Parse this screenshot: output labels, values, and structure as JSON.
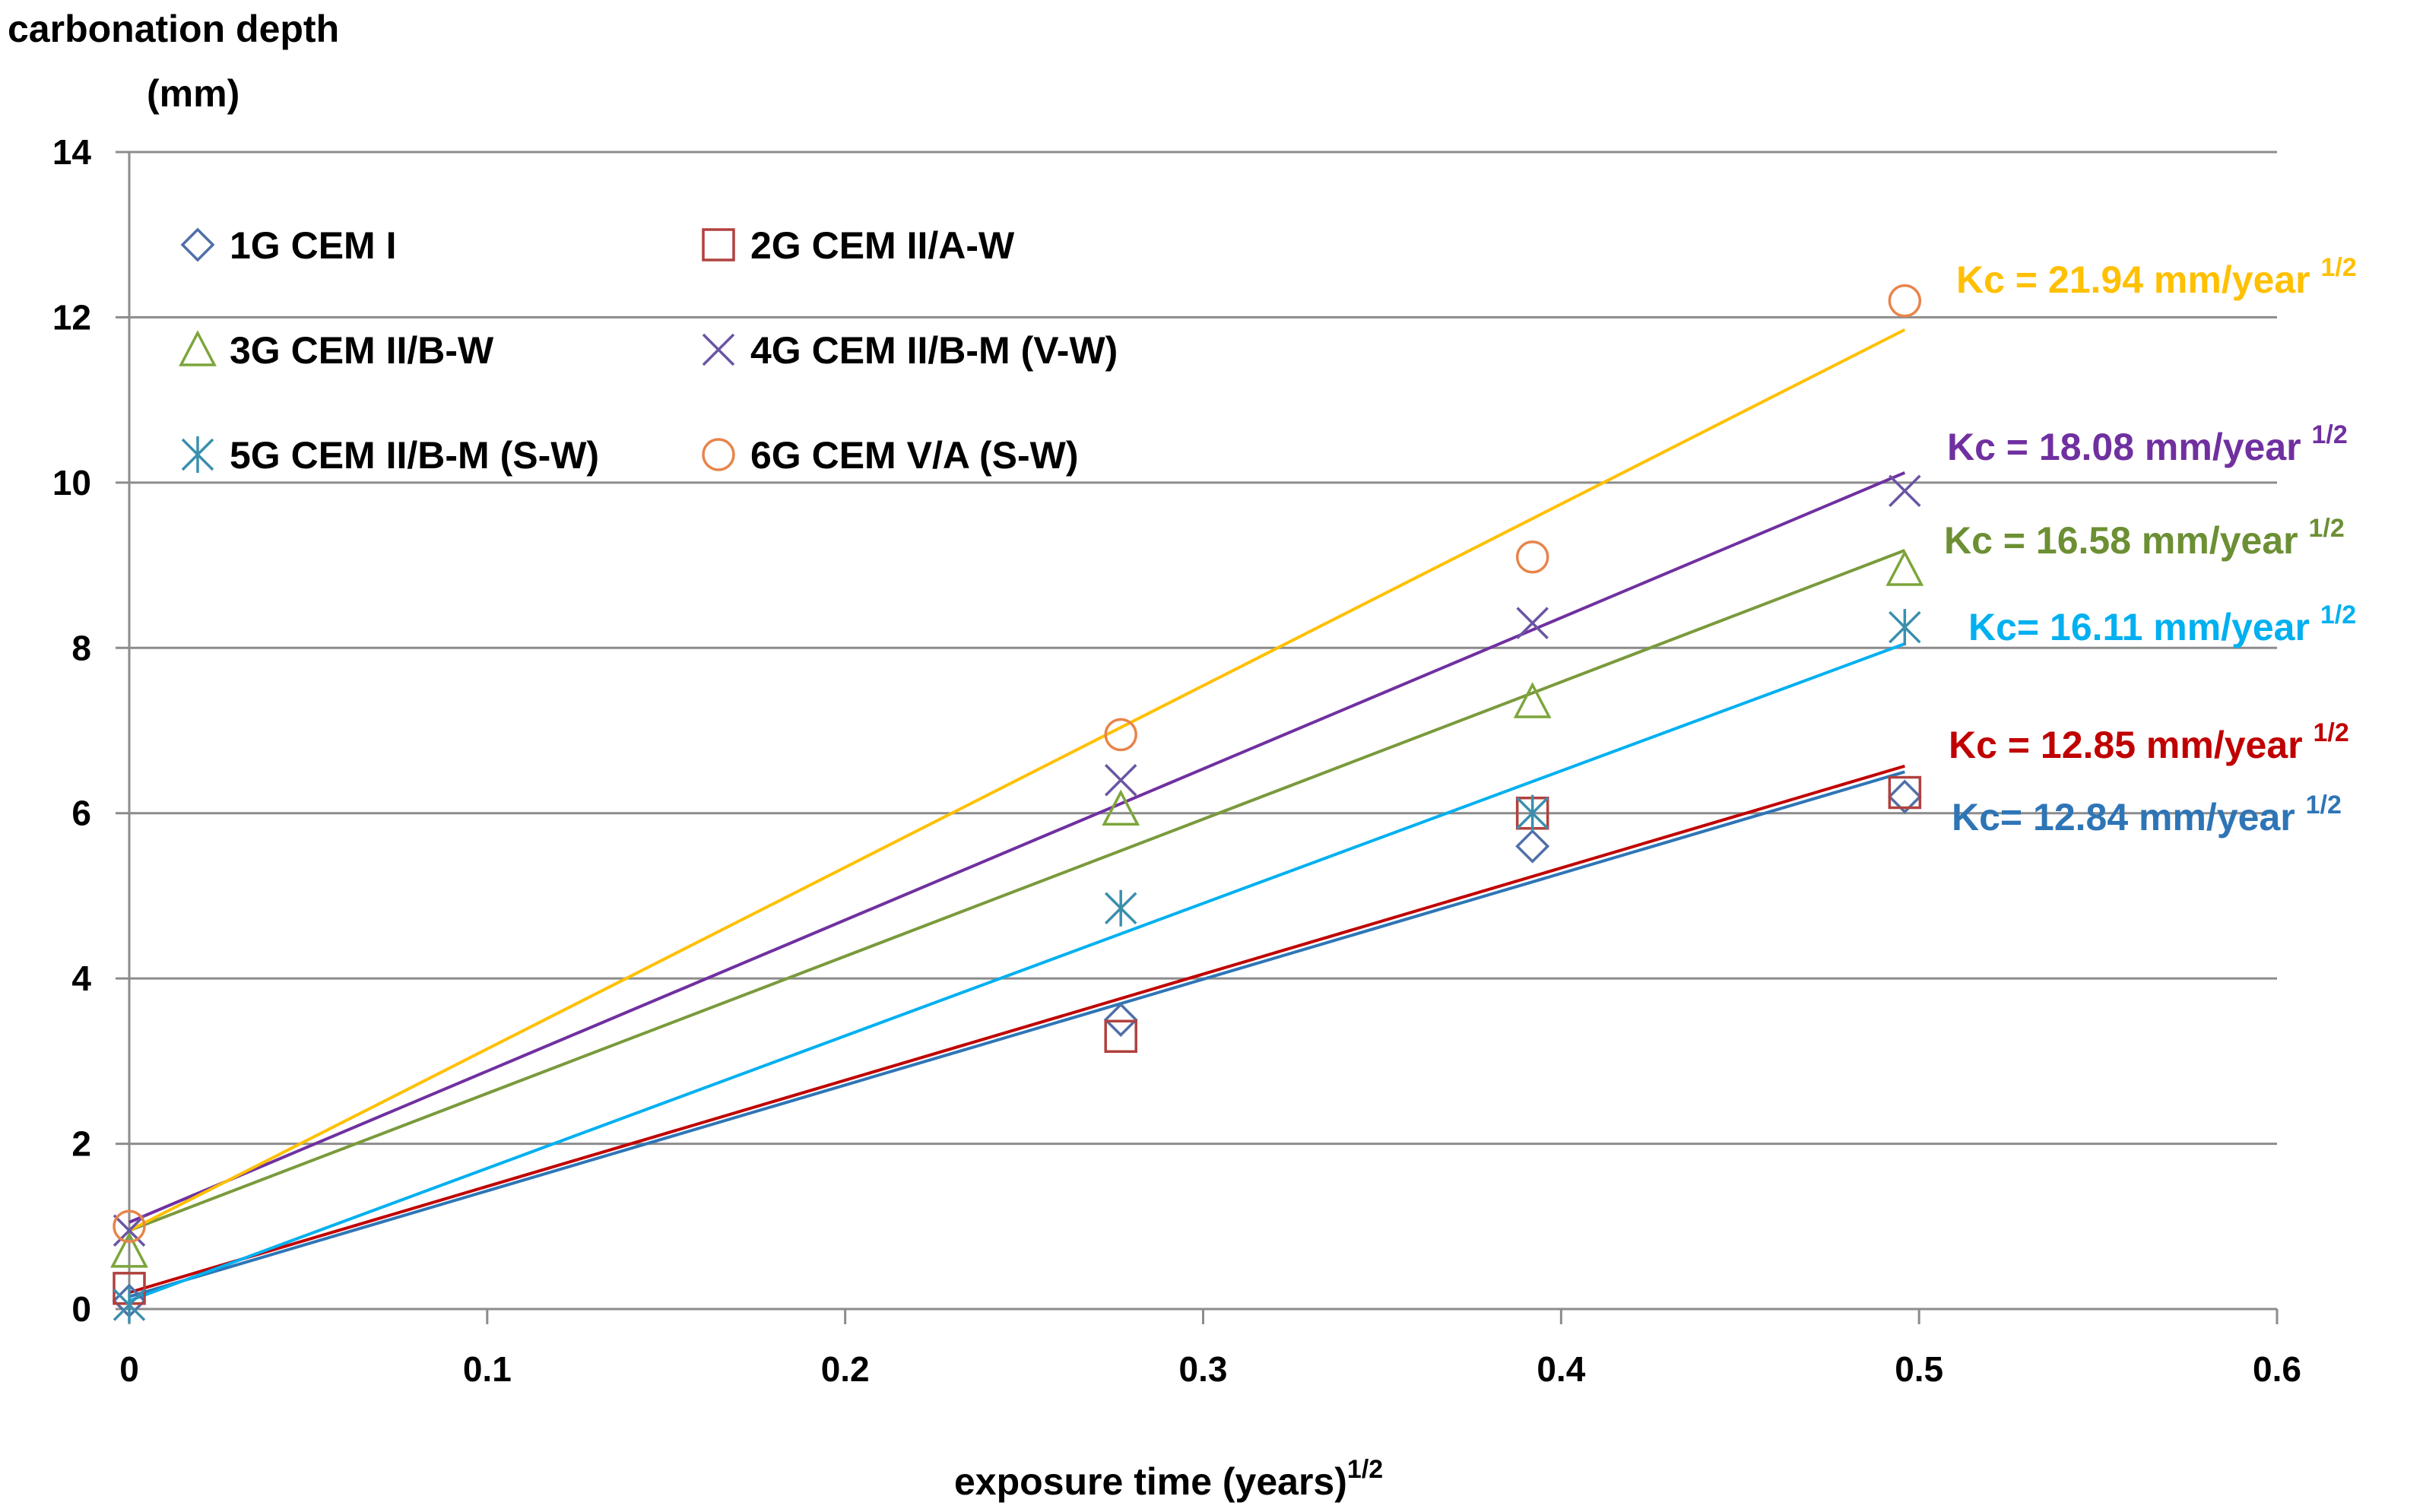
{
  "chart_data": {
    "type": "scatter",
    "title": "",
    "ylabel_line1": "carbonation depth",
    "ylabel_line2": "(mm)",
    "xlabel": "exposure time (years)",
    "xlabel_superscript": "1/2",
    "xlim": [
      0,
      0.6
    ],
    "ylim": [
      0,
      14
    ],
    "xticks": [
      0,
      0.1,
      0.2,
      0.3,
      0.4,
      0.5,
      0.6
    ],
    "yticks": [
      0,
      2,
      4,
      6,
      8,
      10,
      12,
      14
    ],
    "xtick_labels": [
      "0",
      "0.1",
      "0.2",
      "0.3",
      "0.4",
      "0.5",
      "0.6"
    ],
    "ytick_labels": [
      "0",
      "2",
      "4",
      "6",
      "8",
      "10",
      "12",
      "14"
    ],
    "grid": "horizontal",
    "legend_position": "top-left",
    "series": [
      {
        "name": "1G CEM I",
        "marker": "diamond",
        "color": "#4F6FA8",
        "x": [
          0,
          0.277,
          0.392,
          0.496
        ],
        "y": [
          0.1,
          3.5,
          5.6,
          6.2
        ],
        "fit_color": "#2E75B6",
        "fit_start": [
          0,
          0.15
        ],
        "fit_end": [
          0.496,
          6.5
        ],
        "kc_label": "Kc= 12.84 mm/year",
        "kc_superscript": "1/2",
        "kc_color": "#2E75B6"
      },
      {
        "name": "2G CEM II/A-W",
        "marker": "square",
        "color": "#B0413E",
        "x": [
          0,
          0.277,
          0.392,
          0.496
        ],
        "y": [
          0.25,
          3.3,
          6.0,
          6.25
        ],
        "fit_color": "#C00000",
        "fit_start": [
          0,
          0.2
        ],
        "fit_end": [
          0.496,
          6.57
        ],
        "kc_label": "Kc = 12.85 mm/year",
        "kc_superscript": "1/2",
        "kc_color": "#C00000"
      },
      {
        "name": "3G CEM II/B-W",
        "marker": "triangle",
        "color": "#7DA53B",
        "x": [
          0,
          0.277,
          0.392,
          0.496
        ],
        "y": [
          0.7,
          6.05,
          7.35,
          8.95
        ],
        "fit_color": "#7A9A3C",
        "fit_start": [
          0,
          0.95
        ],
        "fit_end": [
          0.496,
          9.18
        ],
        "kc_label": "Kc = 16.58 mm/year",
        "kc_superscript": "1/2",
        "kc_color": "#6C8F34"
      },
      {
        "name": "4G CEM II/B-M (V-W)",
        "marker": "x",
        "color": "#6A55A3",
        "x": [
          0,
          0.277,
          0.392,
          0.496
        ],
        "y": [
          0.95,
          6.4,
          8.3,
          9.9
        ],
        "fit_color": "#7030A0",
        "fit_start": [
          0,
          1.05
        ],
        "fit_end": [
          0.496,
          10.12
        ],
        "kc_label": "Kc = 18.08 mm/year",
        "kc_superscript": "1/2",
        "kc_color": "#7030A0"
      },
      {
        "name": "5G CEM II/B-M (S-W)",
        "marker": "asterisk",
        "color": "#3A8FAD",
        "x": [
          0,
          0.277,
          0.392,
          0.496
        ],
        "y": [
          0.05,
          4.85,
          6.0,
          8.25
        ],
        "fit_color": "#00B0F0",
        "fit_start": [
          0,
          0.1
        ],
        "fit_end": [
          0.496,
          8.05
        ],
        "kc_label": "Kc= 16.11 mm/year",
        "kc_superscript": "1/2",
        "kc_color": "#00B0F0"
      },
      {
        "name": "6G CEM V/A (S-W)",
        "marker": "circle",
        "color": "#E8844A",
        "x": [
          0,
          0.277,
          0.392,
          0.496
        ],
        "y": [
          1.0,
          6.95,
          9.1,
          12.2
        ],
        "fit_color": "#FFC000",
        "fit_start": [
          0,
          0.95
        ],
        "fit_end": [
          0.496,
          11.85
        ],
        "kc_label": "Kc = 21.94 mm/year",
        "kc_superscript": "1/2",
        "kc_color": "#FFC000"
      }
    ]
  }
}
